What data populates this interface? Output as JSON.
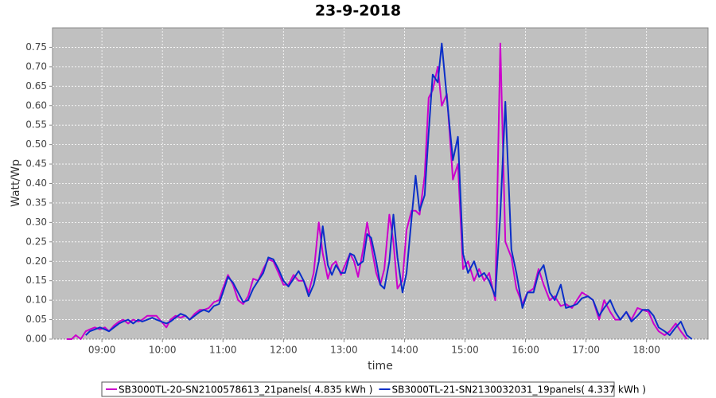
{
  "chart_data": {
    "type": "line",
    "title": "23-9-2018",
    "x_label": "time",
    "y_label": "Watt/Wp",
    "grid": true,
    "legend": "bottom",
    "xlim": [
      "08:11",
      "19:01"
    ],
    "xticks": [
      "09:00",
      "10:00",
      "11:00",
      "12:00",
      "13:00",
      "14:00",
      "15:00",
      "16:00",
      "17:00",
      "18:00"
    ],
    "ylim": [
      0,
      0.8
    ],
    "yticks": [
      {
        "value": 0,
        "label": "0.00"
      },
      0.05,
      {
        "value": 0.1,
        "label": "0.10"
      },
      0.15,
      {
        "value": 0.2,
        "label": "0.20"
      },
      0.25,
      {
        "value": 0.3,
        "label": "0.30"
      },
      0.35,
      {
        "value": 0.4,
        "label": "0.40"
      },
      0.45,
      {
        "value": 0.5,
        "label": "0.50"
      },
      0.55,
      {
        "value": 0.6,
        "label": "0.60"
      },
      0.65,
      {
        "value": 0.7,
        "label": "0.70"
      },
      0.75
    ],
    "x": [
      "08:25",
      "08:30",
      "08:34",
      "08:39",
      "08:44",
      "08:48",
      "08:53",
      "08:58",
      "09:03",
      "09:07",
      "09:12",
      "09:17",
      "09:21",
      "09:26",
      "09:31",
      "09:36",
      "09:40",
      "09:45",
      "09:50",
      "09:54",
      "09:59",
      "10:04",
      "10:08",
      "10:13",
      "10:18",
      "10:23",
      "10:27",
      "10:32",
      "10:37",
      "10:41",
      "10:46",
      "10:51",
      "10:56",
      "11:00",
      "11:05",
      "11:10",
      "11:15",
      "11:20",
      "11:25",
      "11:30",
      "11:35",
      "11:40",
      "11:45",
      "11:50",
      "11:55",
      "12:00",
      "12:05",
      "12:10",
      "12:15",
      "12:20",
      "12:25",
      "12:30",
      "12:35",
      "12:39",
      "12:44",
      "12:48",
      "12:52",
      "12:57",
      "13:01",
      "13:06",
      "13:10",
      "13:14",
      "13:19",
      "13:23",
      "13:27",
      "13:32",
      "13:36",
      "13:40",
      "13:45",
      "13:49",
      "13:53",
      "13:58",
      "14:02",
      "14:07",
      "14:11",
      "14:15",
      "14:20",
      "14:24",
      "14:28",
      "14:33",
      "14:37",
      "14:42",
      "14:48",
      "14:53",
      "14:58",
      "15:03",
      "15:09",
      "15:14",
      "15:19",
      "15:24",
      "15:30",
      "15:35",
      "15:40",
      "15:46",
      "15:51",
      "15:57",
      "16:02",
      "16:08",
      "16:13",
      "16:18",
      "16:24",
      "16:29",
      "16:35",
      "16:40",
      "16:46",
      "16:51",
      "16:56",
      "17:02",
      "17:07",
      "17:13",
      "17:18",
      "17:24",
      "17:29",
      "17:34",
      "17:40",
      "17:45",
      "17:51",
      "17:56",
      "18:02",
      "18:07",
      "18:12",
      "18:18",
      "18:23",
      "18:29",
      "18:34",
      "18:40",
      "18:45"
    ],
    "series": [
      {
        "name": "SB3000TL-20-SN2100578613_21panels( 4.835 kWh )",
        "color": "#cc00cc",
        "values": [
          0,
          0,
          0.01,
          0,
          0.02,
          0.025,
          0.03,
          0.025,
          0.03,
          0.02,
          0.035,
          0.045,
          0.05,
          0.04,
          0.05,
          0.045,
          0.05,
          0.06,
          0.06,
          0.06,
          0.045,
          0.03,
          0.05,
          0.06,
          0.055,
          0.06,
          0.05,
          0.065,
          0.075,
          0.075,
          0.08,
          0.095,
          0.1,
          0.13,
          0.165,
          0.14,
          0.1,
          0.09,
          0.11,
          0.155,
          0.15,
          0.18,
          0.205,
          0.2,
          0.17,
          0.14,
          0.14,
          0.165,
          0.15,
          0.15,
          0.12,
          0.17,
          0.3,
          0.22,
          0.155,
          0.19,
          0.2,
          0.165,
          0.19,
          0.22,
          0.2,
          0.16,
          0.23,
          0.3,
          0.24,
          0.17,
          0.14,
          0.18,
          0.32,
          0.25,
          0.13,
          0.15,
          0.28,
          0.33,
          0.33,
          0.32,
          0.42,
          0.62,
          0.64,
          0.7,
          0.6,
          0.63,
          0.41,
          0.45,
          0.18,
          0.2,
          0.15,
          0.18,
          0.15,
          0.17,
          0.1,
          0.76,
          0.25,
          0.21,
          0.13,
          0.09,
          0.12,
          0.13,
          0.18,
          0.14,
          0.1,
          0.11,
          0.085,
          0.09,
          0.08,
          0.1,
          0.12,
          0.11,
          0.1,
          0.05,
          0.1,
          0.07,
          0.05,
          0.05,
          0.07,
          0.05,
          0.08,
          0.075,
          0.07,
          0.04,
          0.02,
          0.01,
          0.02,
          0.04,
          0.02,
          0,
          null
        ]
      },
      {
        "name": "SB3000TL-21-SN2130032031_19panels( 4.337 kWh )",
        "color": "#0a2fc8",
        "values": [
          null,
          null,
          null,
          null,
          0.01,
          0.02,
          0.025,
          0.03,
          0.025,
          0.02,
          0.03,
          0.04,
          0.045,
          0.05,
          0.04,
          0.05,
          0.045,
          0.05,
          0.055,
          0.05,
          0.045,
          0.04,
          0.045,
          0.055,
          0.065,
          0.06,
          0.05,
          0.06,
          0.07,
          0.075,
          0.07,
          0.085,
          0.09,
          0.12,
          0.16,
          0.145,
          0.12,
          0.095,
          0.1,
          0.13,
          0.15,
          0.17,
          0.21,
          0.205,
          0.18,
          0.15,
          0.135,
          0.155,
          0.175,
          0.15,
          0.11,
          0.14,
          0.2,
          0.29,
          0.19,
          0.165,
          0.19,
          0.17,
          0.17,
          0.22,
          0.215,
          0.19,
          0.2,
          0.27,
          0.26,
          0.2,
          0.14,
          0.13,
          0.2,
          0.32,
          0.21,
          0.12,
          0.17,
          0.31,
          0.42,
          0.33,
          0.37,
          0.53,
          0.68,
          0.66,
          0.76,
          0.62,
          0.46,
          0.52,
          0.22,
          0.17,
          0.2,
          0.16,
          0.17,
          0.15,
          0.11,
          0.32,
          0.61,
          0.23,
          0.17,
          0.08,
          0.12,
          0.12,
          0.17,
          0.19,
          0.12,
          0.1,
          0.14,
          0.08,
          0.085,
          0.09,
          0.105,
          0.11,
          0.1,
          0.06,
          0.08,
          0.1,
          0.07,
          0.05,
          0.07,
          0.045,
          0.06,
          0.075,
          0.075,
          0.06,
          0.03,
          0.02,
          0.01,
          0.03,
          0.045,
          0.01,
          0
        ]
      }
    ]
  }
}
